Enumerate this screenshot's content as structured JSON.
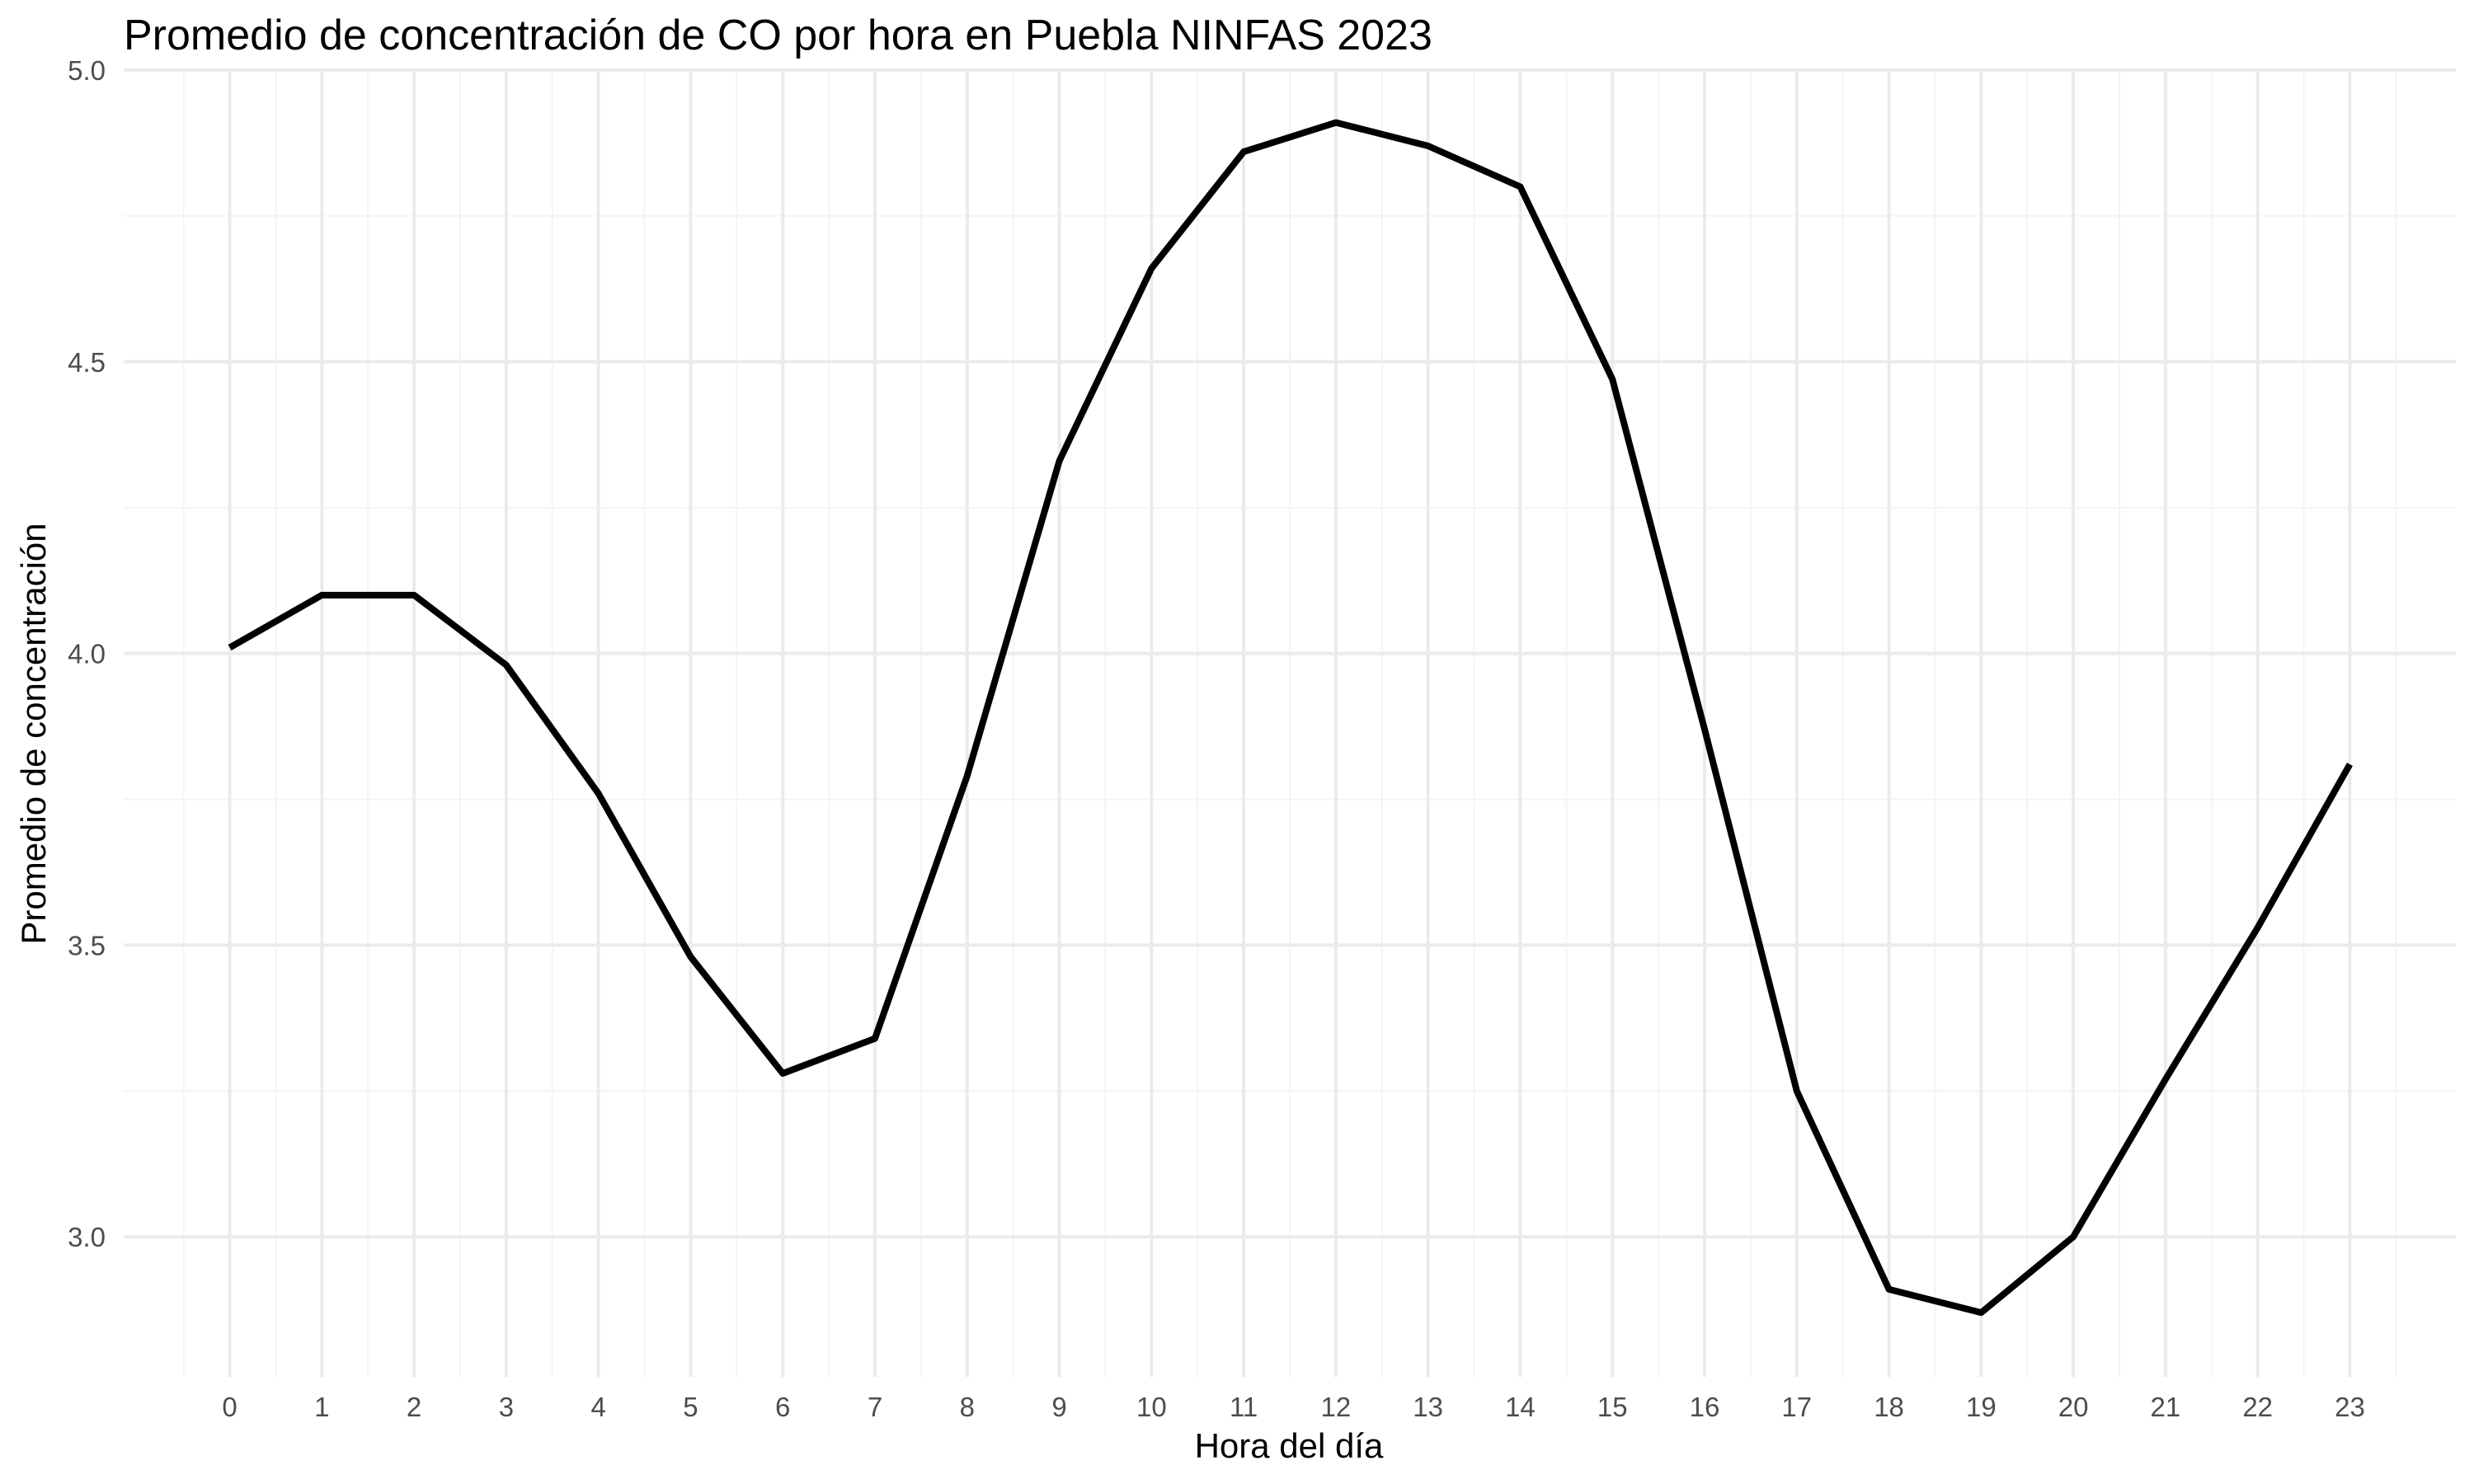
{
  "colors": {
    "background": "#ffffff",
    "grid_major": "#ebebeb",
    "grid_minor": "#f4f4f4",
    "line": "#000000",
    "tick_text": "#4d4d4d",
    "title_text": "#000000"
  },
  "chart_data": {
    "type": "line",
    "title": "Promedio de concentración de CO por hora en Puebla NINFAS 2023",
    "xlabel": "Hora del día",
    "ylabel": "Promedio de concentración",
    "xlim": [
      -1.15,
      24.15
    ],
    "ylim": [
      2.76,
      5.0
    ],
    "x_ticks": [
      0,
      1,
      2,
      3,
      4,
      5,
      6,
      7,
      8,
      9,
      10,
      11,
      12,
      13,
      14,
      15,
      16,
      17,
      18,
      19,
      20,
      21,
      22,
      23
    ],
    "x_tick_labels": [
      "0",
      "1",
      "2",
      "3",
      "4",
      "5",
      "6",
      "7",
      "8",
      "9",
      "10",
      "11",
      "12",
      "13",
      "14",
      "15",
      "16",
      "17",
      "18",
      "19",
      "20",
      "21",
      "22",
      "23"
    ],
    "y_ticks": [
      3.0,
      3.5,
      4.0,
      4.5,
      5.0
    ],
    "y_tick_labels": [
      "3.0",
      "3.5",
      "4.0",
      "4.5",
      "5.0"
    ],
    "grid": true,
    "legend": "none",
    "series": [
      {
        "x": [
          0,
          1,
          2,
          3,
          4,
          5,
          6,
          7,
          8,
          9,
          10,
          11,
          12,
          13,
          14,
          15,
          16,
          17,
          18,
          19,
          20,
          21,
          22,
          23
        ],
        "values": [
          4.01,
          4.1,
          4.1,
          3.98,
          3.76,
          3.48,
          3.28,
          3.34,
          3.79,
          4.33,
          4.66,
          4.86,
          4.91,
          4.87,
          4.8,
          4.47,
          3.87,
          3.25,
          2.91,
          2.87,
          3.0,
          3.27,
          3.53,
          3.81
        ]
      }
    ]
  }
}
